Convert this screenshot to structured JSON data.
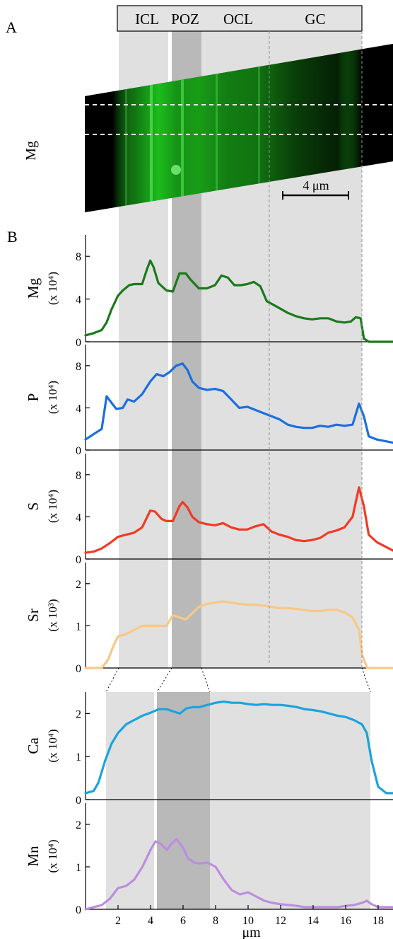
{
  "figure": {
    "panel_a_label": "A",
    "panel_b_label": "B",
    "image_channel_label": "Mg",
    "scale_bar_label": "4 μm",
    "image_channel_color": "#1fd11f",
    "zones": [
      {
        "label": "ICL",
        "shade": "#e0e0e0"
      },
      {
        "label": "POZ",
        "shade": "#b9b9b9"
      },
      {
        "label": "OCL",
        "shade": "#e0e0e0"
      },
      {
        "label": "GC",
        "shade": "#e0e0e0"
      }
    ]
  },
  "chart_data": [
    {
      "type": "line",
      "element": "Mg",
      "unit": "(x 10⁴)",
      "color": "#1b7a1b",
      "ylim": [
        0,
        10
      ],
      "yticks": [
        0,
        4,
        8
      ],
      "xlim": [
        0,
        19
      ],
      "x": [
        0,
        0.5,
        1,
        1.3,
        1.6,
        2,
        2.3,
        2.7,
        3,
        3.5,
        3.8,
        4,
        4.2,
        4.5,
        5,
        5.4,
        5.8,
        6.2,
        6.5,
        7,
        7.5,
        8,
        8.4,
        8.8,
        9.2,
        9.6,
        10,
        10.4,
        10.8,
        11.2,
        11.8,
        12.5,
        13,
        13.5,
        14,
        14.5,
        15,
        15.5,
        16,
        16.4,
        16.7,
        17,
        17.2,
        17.5,
        18,
        19
      ],
      "values": [
        0.6,
        0.8,
        1.1,
        1.8,
        3.0,
        4.3,
        4.8,
        5.3,
        5.4,
        5.4,
        6.8,
        7.6,
        7.0,
        5.5,
        4.8,
        4.7,
        6.4,
        6.4,
        5.8,
        5.0,
        5.0,
        5.3,
        6.2,
        6.0,
        5.3,
        5.3,
        5.4,
        5.6,
        5.2,
        3.8,
        3.3,
        2.7,
        2.4,
        2.2,
        2.1,
        2.2,
        2.2,
        1.9,
        1.8,
        1.9,
        2.3,
        2.2,
        0.3,
        0,
        0,
        0
      ]
    },
    {
      "type": "line",
      "element": "P",
      "unit": "(x 10⁴)",
      "color": "#1a6fe0",
      "ylim": [
        0,
        10
      ],
      "yticks": [
        0,
        4,
        8
      ],
      "xlim": [
        0,
        19
      ],
      "x": [
        0,
        0.5,
        1,
        1.3,
        1.6,
        1.9,
        2.3,
        2.6,
        3,
        3.5,
        4,
        4.4,
        4.8,
        5.2,
        5.6,
        6,
        6.3,
        6.6,
        7,
        7.5,
        8,
        8.5,
        9,
        9.5,
        10,
        10.5,
        11,
        11.5,
        12,
        12.5,
        13,
        13.5,
        14,
        14.5,
        15,
        15.5,
        16,
        16.5,
        16.9,
        17.2,
        17.5,
        18,
        19
      ],
      "values": [
        1.0,
        1.5,
        2.0,
        5.1,
        4.5,
        3.9,
        4.0,
        4.8,
        4.6,
        5.3,
        6.5,
        7.2,
        7.0,
        7.4,
        8.0,
        8.2,
        7.6,
        6.5,
        5.9,
        5.7,
        5.8,
        5.6,
        4.8,
        4.0,
        4.1,
        3.8,
        3.5,
        3.2,
        2.9,
        2.4,
        2.2,
        2.1,
        2.1,
        2.3,
        2.2,
        2.4,
        2.3,
        2.4,
        4.4,
        3.2,
        1.3,
        1.0,
        0.7
      ]
    },
    {
      "type": "line",
      "element": "S",
      "unit": "(x 10⁴)",
      "color": "#f03a24",
      "ylim": [
        0,
        10
      ],
      "yticks": [
        0,
        4,
        8
      ],
      "xlim": [
        0,
        19
      ],
      "x": [
        0,
        0.5,
        1,
        1.5,
        2,
        2.5,
        3,
        3.5,
        4,
        4.3,
        4.7,
        5,
        5.4,
        5.8,
        6,
        6.3,
        6.6,
        7,
        7.5,
        8,
        8.5,
        9,
        9.5,
        10,
        10.5,
        11,
        11.5,
        12,
        12.5,
        13,
        13.5,
        14,
        14.5,
        15,
        15.5,
        16,
        16.5,
        16.9,
        17.2,
        17.5,
        18,
        19
      ],
      "values": [
        0.6,
        0.7,
        1.0,
        1.5,
        2.1,
        2.3,
        2.5,
        3.0,
        4.6,
        4.5,
        3.8,
        3.6,
        3.6,
        5.0,
        5.4,
        4.9,
        4.0,
        3.5,
        3.3,
        3.2,
        3.4,
        3.0,
        2.8,
        2.8,
        3.1,
        3.3,
        2.6,
        2.3,
        2.1,
        1.8,
        1.7,
        1.8,
        2.0,
        2.5,
        2.7,
        3.0,
        4.0,
        6.8,
        5.0,
        2.3,
        1.6,
        0.8
      ]
    },
    {
      "type": "line",
      "element": "Sr",
      "unit": "(x 10³)",
      "color": "#f8c886",
      "ylim": [
        0,
        2.5
      ],
      "yticks": [
        0,
        1,
        2
      ],
      "xlim": [
        0,
        19
      ],
      "x": [
        0,
        1,
        1.4,
        1.7,
        2,
        2.5,
        3,
        3.5,
        4,
        4.5,
        5,
        5.4,
        5.8,
        6.2,
        6.6,
        7,
        7.5,
        8,
        8.5,
        9,
        9.5,
        10,
        10.5,
        11,
        11.5,
        12,
        12.5,
        13,
        13.5,
        14,
        14.5,
        15,
        15.5,
        16,
        16.5,
        16.9,
        17.1,
        17.4,
        18,
        19
      ],
      "values": [
        0,
        0,
        0.2,
        0.5,
        0.75,
        0.8,
        0.9,
        1.0,
        1.0,
        1.0,
        1.0,
        1.25,
        1.2,
        1.15,
        1.3,
        1.45,
        1.52,
        1.55,
        1.58,
        1.55,
        1.52,
        1.5,
        1.5,
        1.48,
        1.45,
        1.42,
        1.42,
        1.4,
        1.38,
        1.35,
        1.35,
        1.38,
        1.38,
        1.32,
        1.2,
        0.9,
        0.3,
        0,
        0,
        0
      ]
    },
    {
      "type": "line",
      "element": "Ca",
      "unit": "(x 10⁴)",
      "color": "#1ba3de",
      "ylim": [
        0,
        2.5
      ],
      "yticks": [
        0,
        1,
        2
      ],
      "xlim": [
        0,
        19
      ],
      "x": [
        0,
        0.5,
        0.8,
        1.2,
        1.6,
        2,
        2.5,
        3,
        3.5,
        4,
        4.5,
        5,
        5.4,
        5.8,
        6.2,
        6.6,
        7,
        7.5,
        8,
        8.5,
        9,
        9.5,
        10,
        10.5,
        11,
        11.5,
        12,
        12.5,
        13,
        13.5,
        14,
        14.5,
        15,
        15.5,
        16,
        16.5,
        17,
        17.3,
        17.6,
        18,
        18.5,
        19
      ],
      "values": [
        0.15,
        0.2,
        0.4,
        0.9,
        1.3,
        1.55,
        1.75,
        1.85,
        1.95,
        2.02,
        2.1,
        2.1,
        2.05,
        2.0,
        2.12,
        2.15,
        2.15,
        2.2,
        2.25,
        2.28,
        2.25,
        2.25,
        2.22,
        2.2,
        2.22,
        2.2,
        2.2,
        2.18,
        2.15,
        2.1,
        2.08,
        2.05,
        2.0,
        1.95,
        1.92,
        1.85,
        1.75,
        1.55,
        0.9,
        0.3,
        0.15,
        0.15
      ]
    },
    {
      "type": "line",
      "element": "Mn",
      "unit": "(x 10⁴)",
      "color": "#bc8de0",
      "ylim": [
        0,
        2.5
      ],
      "yticks": [
        0,
        1,
        2
      ],
      "xlim": [
        0,
        19
      ],
      "ticks_x": [
        2,
        4,
        6,
        8,
        10,
        12,
        14,
        16,
        18
      ],
      "xlabel": "μm",
      "x": [
        0,
        0.5,
        1,
        1.5,
        2,
        2.5,
        3,
        3.5,
        4,
        4.3,
        4.6,
        5,
        5.3,
        5.6,
        6,
        6.3,
        6.7,
        7,
        7.5,
        8,
        8.5,
        9,
        9.5,
        10,
        10.5,
        11,
        11.5,
        12,
        12.5,
        13,
        13.5,
        14,
        14.5,
        15,
        15.5,
        16,
        16.5,
        17,
        17.3,
        17.6,
        18,
        19
      ],
      "values": [
        0,
        0.05,
        0.1,
        0.25,
        0.5,
        0.55,
        0.7,
        1.0,
        1.4,
        1.6,
        1.55,
        1.4,
        1.55,
        1.65,
        1.45,
        1.2,
        1.1,
        1.08,
        1.1,
        1.0,
        0.7,
        0.45,
        0.35,
        0.4,
        0.3,
        0.2,
        0.15,
        0.12,
        0.1,
        0.08,
        0.05,
        0.05,
        0.05,
        0.05,
        0.05,
        0.08,
        0.1,
        0.15,
        0.2,
        0.12,
        0.05,
        0.05
      ]
    }
  ]
}
